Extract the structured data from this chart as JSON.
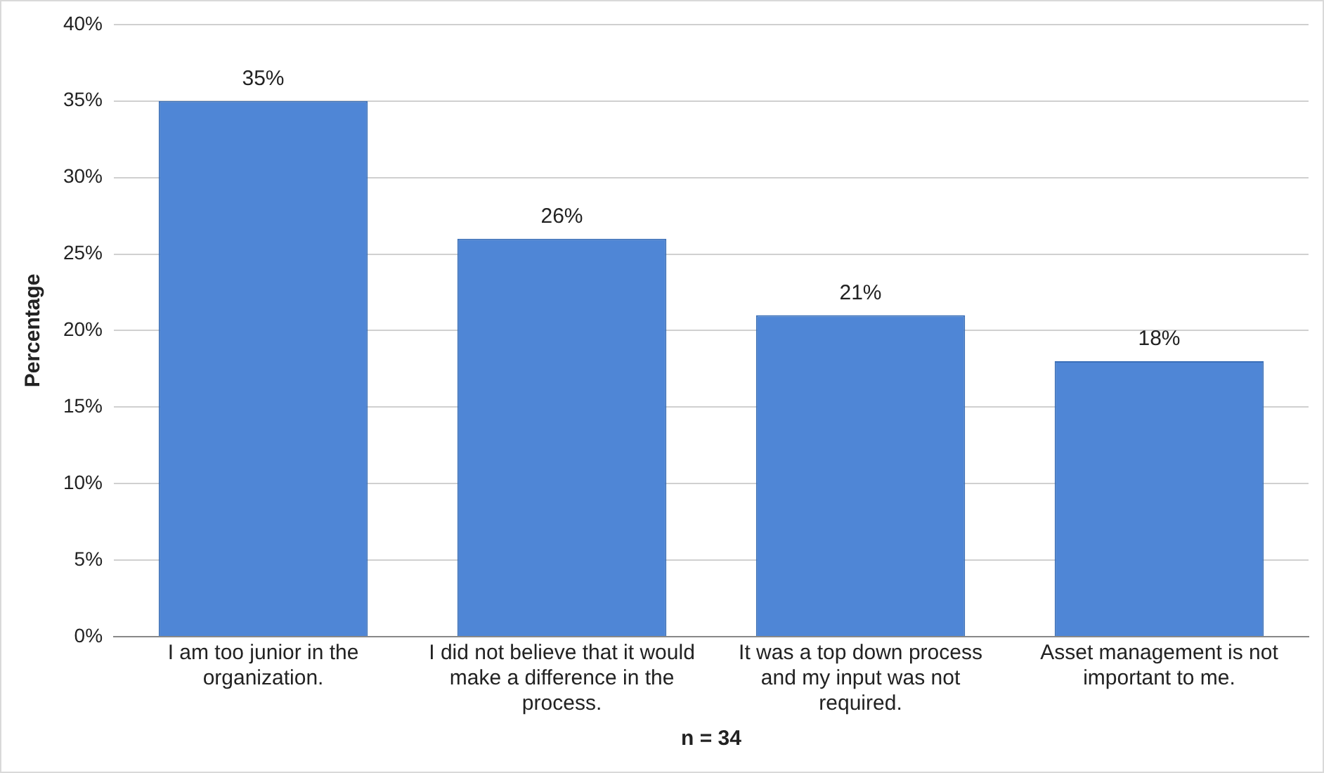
{
  "chart_data": {
    "type": "bar",
    "xlabel": "n = 34",
    "ylabel": "Percentage",
    "categories": [
      "I am too junior in the organization.",
      "I did not believe that it would make a difference in the process.",
      "It was a top down process and my input was not required.",
      "Asset management is not important to me."
    ],
    "values": [
      35,
      26,
      21,
      18
    ],
    "value_labels": [
      "35%",
      "26%",
      "21%",
      "18%"
    ],
    "color": "#4f86d6",
    "ylim": [
      0,
      40
    ],
    "yticks": [
      {
        "value": 0,
        "label": "0%"
      },
      {
        "value": 5,
        "label": "5%"
      },
      {
        "value": 10,
        "label": "10%"
      },
      {
        "value": 15,
        "label": "15%"
      },
      {
        "value": 20,
        "label": "20%"
      },
      {
        "value": 25,
        "label": "25%"
      },
      {
        "value": 30,
        "label": "30%"
      },
      {
        "value": 35,
        "label": "35%"
      },
      {
        "value": 40,
        "label": "40%"
      }
    ],
    "grid": "y",
    "legend": false
  }
}
